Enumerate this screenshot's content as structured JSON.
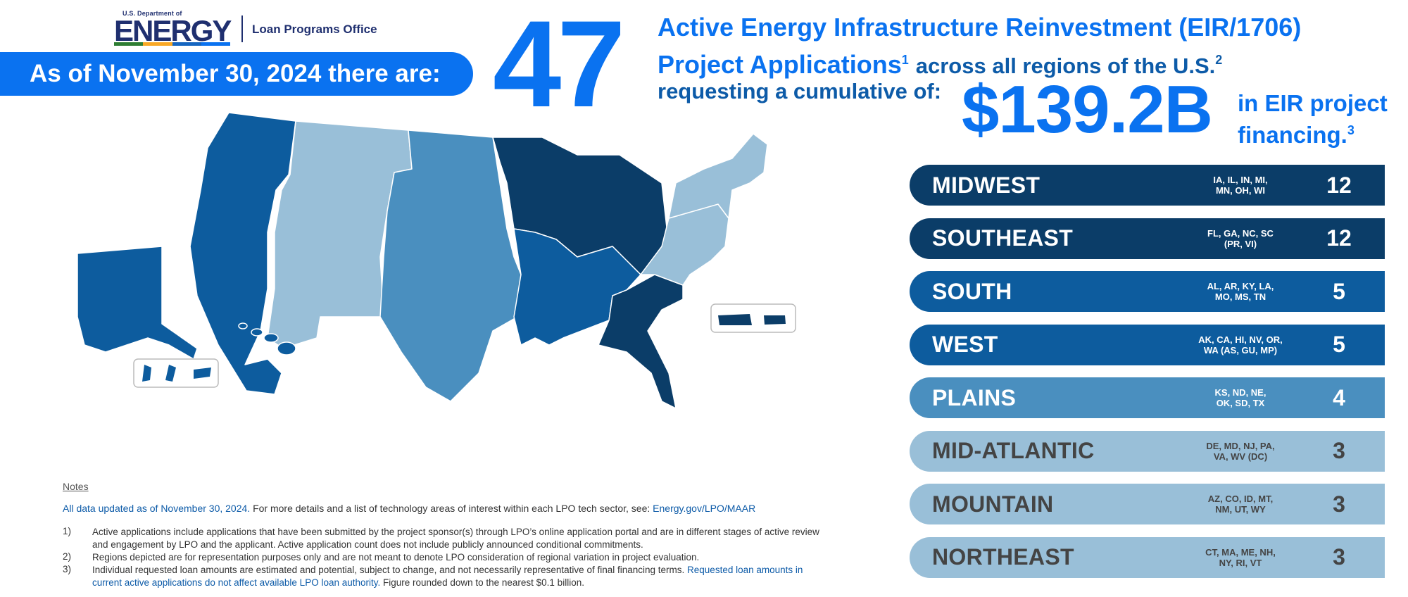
{
  "logo": {
    "dept_small": "U.S. Department of",
    "energy": "ENERGY",
    "office": "Loan Programs Office"
  },
  "as_of": "As of November 30, 2024 there are:",
  "big_number": "47",
  "headline": {
    "line1": "Active Energy Infrastructure Reinvestment (EIR/1706)",
    "line2": "Project Applications",
    "sup1": "1",
    "line2_cont": "across all regions of the U.S.",
    "sup2": "2"
  },
  "requesting": "requesting a cumulative of:",
  "amount": "$139.2B",
  "amount_label": {
    "line1": "in EIR project",
    "line2": "financing.",
    "sup3": "3"
  },
  "colors": {
    "brand_blue": "#0a72f0",
    "dark_navy": "#0b3d68",
    "medium_blue": "#0d5c9e",
    "steel_blue": "#4a8fbf",
    "light_blue": "#99bfd8",
    "dark_text": "#444444"
  },
  "regions": [
    {
      "name": "MIDWEST",
      "states_line1": "IA, IL, IN, MI,",
      "states_line2": "MN, OH, WI",
      "count": "12",
      "color": "#0b3d68",
      "text_color": "#ffffff"
    },
    {
      "name": "SOUTHEAST",
      "states_line1": "FL, GA, NC, SC",
      "states_line2": "(PR, VI)",
      "count": "12",
      "color": "#0b3d68",
      "text_color": "#ffffff"
    },
    {
      "name": "SOUTH",
      "states_line1": "AL, AR, KY, LA,",
      "states_line2": "MO, MS, TN",
      "count": "5",
      "color": "#0d5c9e",
      "text_color": "#ffffff"
    },
    {
      "name": "WEST",
      "states_line1": "AK, CA, HI, NV, OR,",
      "states_line2": "WA (AS, GU, MP)",
      "count": "5",
      "color": "#0d5c9e",
      "text_color": "#ffffff"
    },
    {
      "name": "PLAINS",
      "states_line1": "KS, ND, NE,",
      "states_line2": "OK, SD, TX",
      "count": "4",
      "color": "#4a8fbf",
      "text_color": "#ffffff"
    },
    {
      "name": "MID-ATLANTIC",
      "states_line1": "DE, MD, NJ, PA,",
      "states_line2": "VA, WV (DC)",
      "count": "3",
      "color": "#99bfd8",
      "text_color": "#444444"
    },
    {
      "name": "MOUNTAIN",
      "states_line1": "AZ, CO, ID, MT,",
      "states_line2": "NM, UT, WY",
      "count": "3",
      "color": "#99bfd8",
      "text_color": "#444444"
    },
    {
      "name": "NORTHEAST",
      "states_line1": "CT, MA, ME, NH,",
      "states_line2": "NY, RI, VT",
      "count": "3",
      "color": "#99bfd8",
      "text_color": "#444444"
    }
  ],
  "notes": {
    "title": "Notes",
    "updated_blue": "All data updated as of November 30, 2024.",
    "updated_rest": "For more details and a list of technology areas of interest within each LPO tech sector, see:",
    "updated_link": "Energy.gov/LPO/MAAR",
    "items": [
      {
        "num": "1)",
        "text": "Active applications include applications that have been submitted by the project sponsor(s) through LPO’s online application portal and are in different stages of active review and engagement by LPO and the applicant. Active application count does not include publicly announced conditional commitments."
      },
      {
        "num": "2)",
        "text": "Regions depicted are for representation purposes only and are not meant to denote LPO consideration of regional variation in project evaluation."
      },
      {
        "num": "3)",
        "text_before": "Individual requested loan amounts are estimated and potential, subject to change, and not necessarily representative of final financing terms.",
        "text_blue": "Requested loan amounts in current active applications do not affect available LPO loan authority.",
        "text_after": "Figure rounded down to the nearest $0.1 billion."
      }
    ]
  }
}
